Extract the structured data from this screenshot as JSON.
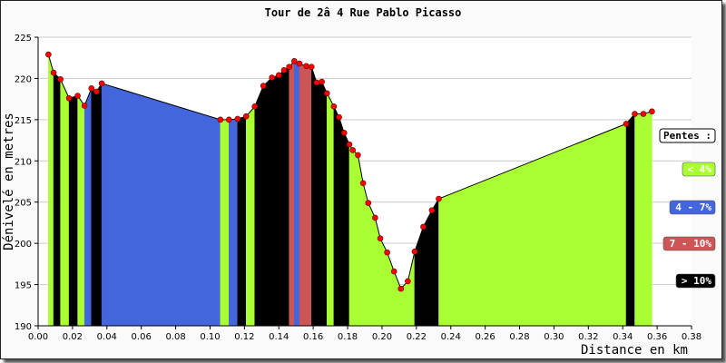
{
  "chart_data": {
    "type": "area",
    "title": "Tour de 2â  4 Rue Pablo Picasso",
    "xlabel": "Distance en km",
    "ylabel": "Dénivelé en metres",
    "xlim": [
      0.0,
      0.38
    ],
    "ylim": [
      190,
      225
    ],
    "x_ticks": [
      "0.00",
      "0.02",
      "0.04",
      "0.06",
      "0.08",
      "0.10",
      "0.12",
      "0.14",
      "0.16",
      "0.18",
      "0.20",
      "0.22",
      "0.24",
      "0.26",
      "0.28",
      "0.30",
      "0.32",
      "0.34",
      "0.36",
      "0.38"
    ],
    "y_ticks": [
      "190",
      "195",
      "200",
      "205",
      "210",
      "215",
      "220",
      "225"
    ],
    "grid": true,
    "x": [
      0.006,
      0.009,
      0.013,
      0.018,
      0.023,
      0.027,
      0.031,
      0.034,
      0.037,
      0.106,
      0.111,
      0.116,
      0.121,
      0.126,
      0.131,
      0.136,
      0.14,
      0.143,
      0.146,
      0.149,
      0.152,
      0.156,
      0.159,
      0.162,
      0.165,
      0.168,
      0.172,
      0.175,
      0.178,
      0.181,
      0.183,
      0.186,
      0.189,
      0.192,
      0.196,
      0.199,
      0.203,
      0.207,
      0.211,
      0.215,
      0.219,
      0.224,
      0.229,
      0.233,
      0.342,
      0.347,
      0.352,
      0.357
    ],
    "elevation": [
      222.9,
      220.7,
      219.9,
      217.6,
      217.9,
      216.7,
      218.8,
      218.4,
      219.4,
      215.0,
      215.0,
      215.1,
      215.4,
      216.6,
      219.1,
      220.1,
      220.4,
      221.0,
      221.4,
      222.1,
      221.8,
      221.5,
      221.4,
      219.5,
      219.6,
      218.2,
      216.6,
      215.3,
      213.4,
      212.0,
      211.3,
      210.7,
      207.3,
      204.9,
      203.1,
      200.6,
      198.9,
      196.6,
      194.5,
      195.4,
      199.0,
      202.0,
      204.0,
      205.4,
      214.5,
      215.7,
      215.7,
      216.0
    ],
    "slope_class": [
      "",
      "gentle",
      "black",
      "gentle",
      "black",
      "gentle",
      "blue",
      "black",
      "black",
      "blue",
      "gentle",
      "blue",
      "black",
      "gentle",
      "black",
      "black",
      "black",
      "black",
      "black",
      "red",
      "blue",
      "red",
      "red",
      "black",
      "black",
      "black",
      "gentle",
      "black",
      "black",
      "black",
      "gentle",
      "gentle",
      "gentle",
      "gentle",
      "gentle",
      "gentle",
      "gentle",
      "gentle",
      "gentle",
      "gentle",
      "gentle",
      "black",
      "black",
      "black",
      "gentle",
      "black",
      "gentle",
      ""
    ],
    "legend": {
      "title": "Pentes :",
      "placement": "right",
      "items": [
        {
          "label": "< 4%",
          "color": "#aaff33",
          "text_color": "#ffffff"
        },
        {
          "label": "4 - 7%",
          "color": "#4466dd",
          "text_color": "#ffffff"
        },
        {
          "label": "7 - 10%",
          "color": "#cc5555",
          "text_color": "#ffffff"
        },
        {
          "label": "> 10%",
          "color": "#000000",
          "text_color": "#ffffff"
        }
      ]
    },
    "colors": {
      "gentle": "#aaff33",
      "blue": "#4466dd",
      "red": "#cc5555",
      "black": "#000000",
      "marker": "#ff0000"
    }
  }
}
